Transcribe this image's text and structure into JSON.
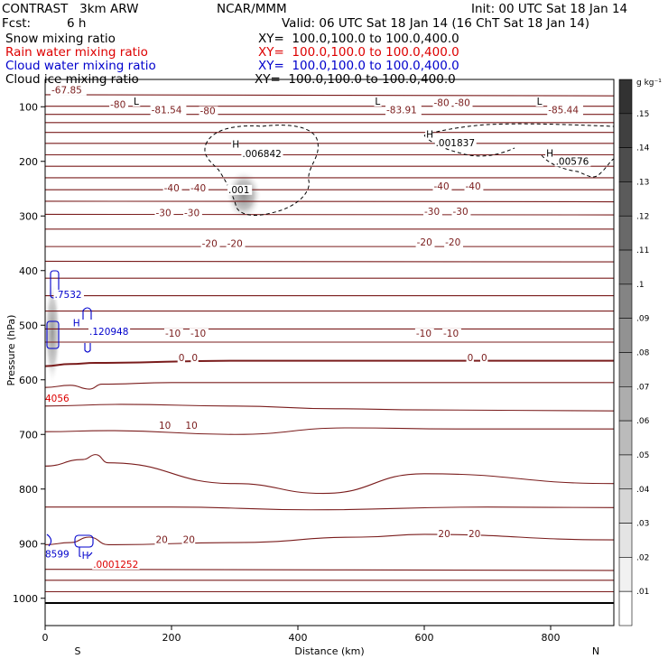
{
  "header": {
    "model": "CONTRAST   3km ARW",
    "center": "NCAR/MMM",
    "init": "Init: 00 UTC Sat 18 Jan 14",
    "fcst_label": "Fcst:",
    "fcst_value": "6 h",
    "valid": "Valid: 06 UTC Sat 18 Jan 14 (16 ChT Sat 18 Jan 14)",
    "fields": [
      {
        "name": "Snow mixing ratio",
        "color": "#000000",
        "xy": "XY=  100.0,100.0 to 100.0,400.0"
      },
      {
        "name": "Rain water mixing ratio",
        "color": "#dd0000",
        "xy": "XY=  100.0,100.0 to 100.0,400.0"
      },
      {
        "name": "Cloud water mixing ratio",
        "color": "#0000cc",
        "xy": "XY=  100.0,100.0 to 100.0,400.0"
      },
      {
        "name": "Cloud ice mixing ratio",
        "color": "#000000",
        "xy": "XY=  100.0,100.0 to 100.0,400.0"
      }
    ]
  },
  "chart_data": {
    "type": "contour_cross_section",
    "x": {
      "label": "Distance (km)",
      "min": 0,
      "max": 900,
      "ticks": [
        "0",
        "200",
        "400",
        "600",
        "800"
      ],
      "tick_values": [
        0,
        200,
        400,
        600,
        800
      ]
    },
    "y": {
      "label": "Pressure (hPa)",
      "min": 1050,
      "max": 50,
      "ticks": [
        "100",
        "200",
        "300",
        "400",
        "500",
        "600",
        "700",
        "800",
        "900",
        "1000"
      ],
      "tick_values": [
        100,
        200,
        300,
        400,
        500,
        600,
        700,
        800,
        900,
        1000
      ]
    },
    "ends": {
      "left": "S",
      "right": "N"
    },
    "colorbar": {
      "unit": "g kg⁻¹",
      "labels": [
        ".15",
        ".14",
        ".13",
        ".12",
        ".11",
        ".1",
        ".09",
        ".08",
        ".07",
        ".06",
        ".05",
        ".04",
        ".03",
        ".02",
        ".01"
      ]
    },
    "temperature_isotherms": [
      {
        "x": [
          0,
          900
        ],
        "p": [
          78,
          80
        ]
      },
      {
        "x": [
          0,
          900
        ],
        "p": [
          99,
          99
        ]
      },
      {
        "x": [
          0,
          900
        ],
        "p": [
          114,
          114
        ]
      },
      {
        "x": [
          0,
          900
        ],
        "p": [
          129,
          129
        ]
      },
      {
        "x": [
          0,
          900
        ],
        "p": [
          147,
          147
        ]
      },
      {
        "x": [
          0,
          900
        ],
        "p": [
          167,
          167
        ]
      },
      {
        "x": [
          0,
          900
        ],
        "p": [
          188,
          188
        ]
      },
      {
        "x": [
          0,
          900
        ],
        "p": [
          209,
          209
        ]
      },
      {
        "x": [
          0,
          900
        ],
        "p": [
          230,
          230
        ]
      },
      {
        "x": [
          0,
          900
        ],
        "p": [
          252,
          252
        ]
      },
      {
        "x": [
          0,
          900
        ],
        "p": [
          273,
          274
        ]
      },
      {
        "x": [
          0,
          900
        ],
        "p": [
          297,
          298
        ]
      },
      {
        "x": [
          0,
          900
        ],
        "p": [
          324,
          324
        ]
      },
      {
        "x": [
          0,
          900
        ],
        "p": [
          356,
          356
        ]
      },
      {
        "x": [
          0,
          900
        ],
        "p": [
          383,
          384
        ]
      },
      {
        "x": [
          0,
          900
        ],
        "p": [
          414,
          414
        ]
      },
      {
        "x": [
          0,
          900
        ],
        "p": [
          446,
          446
        ]
      },
      {
        "x": [
          0,
          900
        ],
        "p": [
          474,
          474
        ]
      },
      {
        "x": [
          0,
          900
        ],
        "p": [
          507,
          507
        ]
      },
      {
        "x": [
          0,
          900
        ],
        "p": [
          531,
          531
        ]
      },
      {
        "x": [
          0,
          40,
          80,
          300,
          900
        ],
        "p": [
          575,
          571,
          569,
          565,
          565
        ]
      },
      {
        "x": [
          0,
          40,
          70,
          90,
          200,
          900
        ],
        "p": [
          614,
          610,
          617,
          608,
          605,
          605
        ]
      },
      {
        "x": [
          0,
          120,
          300,
          460,
          600,
          900
        ],
        "p": [
          648,
          645,
          648,
          653,
          655,
          657
        ]
      },
      {
        "x": [
          0,
          100,
          300,
          480,
          650,
          900
        ],
        "p": [
          695,
          693,
          700,
          688,
          690,
          690
        ]
      },
      {
        "x": [
          0,
          60,
          80,
          100,
          300,
          440,
          600,
          900
        ],
        "p": [
          758,
          746,
          737,
          752,
          790,
          808,
          772,
          790
        ]
      },
      {
        "x": [
          0,
          200,
          420,
          700,
          900
        ],
        "p": [
          833,
          833,
          838,
          833,
          834
        ]
      },
      {
        "x": [
          0,
          40,
          70,
          100,
          300,
          500,
          600,
          900
        ],
        "p": [
          902,
          898,
          888,
          902,
          898,
          888,
          883,
          893
        ]
      },
      {
        "x": [
          0,
          900
        ],
        "p": [
          947,
          949
        ]
      },
      {
        "x": [
          0,
          900
        ],
        "p": [
          967,
          967
        ]
      },
      {
        "x": [
          0,
          900
        ],
        "p": [
          988,
          988
        ]
      }
    ],
    "isotherm_labels": [
      {
        "text": "-80",
        "x": 103,
        "p": 102
      },
      {
        "text": "-80",
        "x": 245,
        "p": 114
      },
      {
        "text": "-80",
        "x": 615,
        "p": 99
      },
      {
        "text": "-80",
        "x": 648,
        "p": 99
      },
      {
        "text": "-40",
        "x": 188,
        "p": 255
      },
      {
        "text": "-40",
        "x": 230,
        "p": 255
      },
      {
        "text": "-40",
        "x": 615,
        "p": 252
      },
      {
        "text": "-40",
        "x": 665,
        "p": 252
      },
      {
        "text": "-30",
        "x": 175,
        "p": 300
      },
      {
        "text": "-30",
        "x": 220,
        "p": 300
      },
      {
        "text": "-30",
        "x": 600,
        "p": 298
      },
      {
        "text": "-30",
        "x": 645,
        "p": 298
      },
      {
        "text": "-20",
        "x": 248,
        "p": 357
      },
      {
        "text": "-20",
        "x": 288,
        "p": 357
      },
      {
        "text": "-20",
        "x": 588,
        "p": 354
      },
      {
        "text": "-20",
        "x": 633,
        "p": 354
      },
      {
        "text": "-10",
        "x": 190,
        "p": 521
      },
      {
        "text": "-10",
        "x": 230,
        "p": 521
      },
      {
        "text": "-10",
        "x": 587,
        "p": 521
      },
      {
        "text": "-10",
        "x": 630,
        "p": 521
      },
      {
        "text": "0",
        "x": 211,
        "p": 566
      },
      {
        "text": "0",
        "x": 232,
        "p": 566
      },
      {
        "text": "0",
        "x": 668,
        "p": 566
      },
      {
        "text": "0",
        "x": 690,
        "p": 566
      },
      {
        "text": "10",
        "x": 180,
        "p": 690
      },
      {
        "text": "10",
        "x": 222,
        "p": 690
      },
      {
        "text": "20",
        "x": 175,
        "p": 899
      },
      {
        "text": "20",
        "x": 218,
        "p": 899
      },
      {
        "text": "20",
        "x": 622,
        "p": 888
      },
      {
        "text": "20",
        "x": 670,
        "p": 888
      }
    ],
    "min_max_labels": [
      {
        "text": "L",
        "x": 140,
        "p": 96
      },
      {
        "text": "-81.54",
        "x": 168,
        "p": 112
      },
      {
        "text": "L",
        "x": 522,
        "p": 96
      },
      {
        "text": "-83.91",
        "x": 540,
        "p": 112
      },
      {
        "text": "L",
        "x": 778,
        "p": 96
      },
      {
        "text": "-85.44",
        "x": 796,
        "p": 112
      },
      {
        "text": "-67.85",
        "x": 10,
        "p": 76
      },
      {
        "text": "H",
        "x": 296,
        "p": 175
      },
      {
        "text": ".006842",
        "x": 312,
        "p": 192
      },
      {
        "text": ".001",
        "x": 290,
        "p": 258
      },
      {
        "text": "H",
        "x": 603,
        "p": 157
      },
      {
        "text": ".001837",
        "x": 618,
        "p": 172
      },
      {
        "text": "H",
        "x": 793,
        "p": 191
      },
      {
        "text": ".00576",
        "x": 808,
        "p": 206
      }
    ],
    "cloud_water_labels": [
      {
        "text": ".7532",
        "x": 15,
        "p": 450
      },
      {
        "text": "H",
        "x": 44,
        "p": 502
      },
      {
        "text": ".120948",
        "x": 70,
        "p": 518
      },
      {
        "text": "8599",
        "x": 0,
        "p": 925
      },
      {
        "text": "H",
        "x": 58,
        "p": 928
      }
    ],
    "rain_water_labels": [
      {
        "text": "4056",
        "x": 0,
        "p": 640
      },
      {
        "text": ".0001252",
        "x": 76,
        "p": 944
      }
    ],
    "colors": {
      "isotherm": "#7a1c1c",
      "snow": "#000000",
      "rain": "#dd0000",
      "cloud_water": "#0000cc"
    }
  }
}
